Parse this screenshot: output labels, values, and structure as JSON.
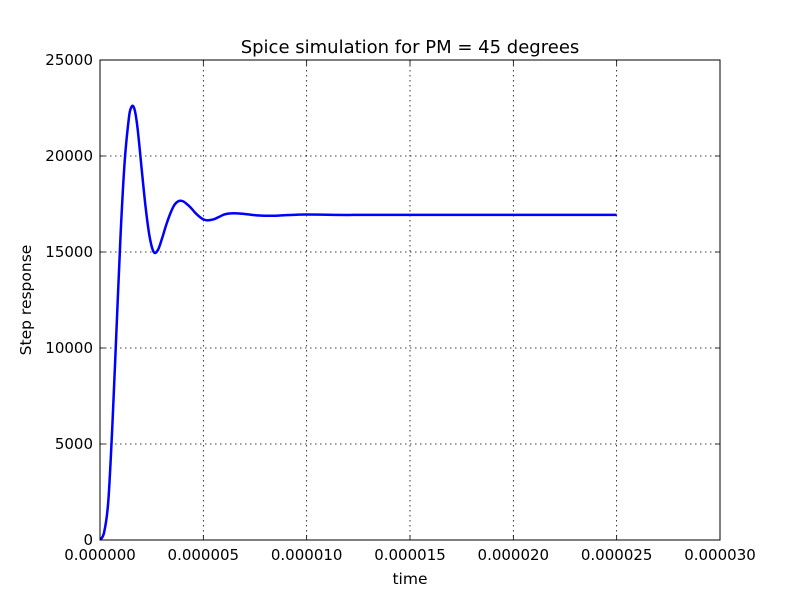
{
  "chart_data": {
    "type": "line",
    "title": "Spice simulation for PM = 45 degrees",
    "xlabel": "time",
    "ylabel": "Step response",
    "xlim": [
      0,
      3e-05
    ],
    "ylim": [
      0,
      25000
    ],
    "x_ticks": [
      0,
      5e-06,
      1e-05,
      1.5e-05,
      2e-05,
      2.5e-05,
      3e-05
    ],
    "x_tick_labels": [
      "0.000000",
      "0.000005",
      "0.000010",
      "0.000015",
      "0.000020",
      "0.000025",
      "0.000030"
    ],
    "y_ticks": [
      0,
      5000,
      10000,
      15000,
      20000,
      25000
    ],
    "y_tick_labels": [
      "0",
      "5000",
      "10000",
      "15000",
      "20000",
      "25000"
    ],
    "grid": true,
    "legend": "none",
    "series": [
      {
        "color": "#0000ff",
        "x": [
          0,
          2e-07,
          4e-07,
          6e-07,
          8e-07,
          1e-06,
          1.2e-06,
          1.4e-06,
          1.5e-06,
          1.6e-06,
          1.7e-06,
          1.8e-06,
          1.9e-06,
          2e-06,
          2.2e-06,
          2.4e-06,
          2.6e-06,
          2.8e-06,
          3e-06,
          3.2e-06,
          3.4e-06,
          3.6e-06,
          3.8e-06,
          4e-06,
          4.2e-06,
          4.4e-06,
          4.6e-06,
          4.8e-06,
          5e-06,
          5.2e-06,
          5.5e-06,
          5.8e-06,
          6e-06,
          6.2e-06,
          6.5e-06,
          6.8e-06,
          7e-06,
          7.3e-06,
          7.6e-06,
          8e-06,
          8.5e-06,
          9e-06,
          9.5e-06,
          1e-05,
          1.1e-05,
          1.2e-05,
          1.3e-05,
          1.5e-05,
          2e-05,
          2.5e-05
        ],
        "y": [
          0,
          400,
          2000,
          6000,
          11000,
          16000,
          19800,
          22000,
          22500,
          22600,
          22300,
          21600,
          20600,
          19500,
          17400,
          15800,
          15000,
          15100,
          15700,
          16400,
          17000,
          17450,
          17650,
          17650,
          17500,
          17300,
          17050,
          16850,
          16700,
          16650,
          16700,
          16850,
          16950,
          17000,
          17020,
          17000,
          16980,
          16940,
          16910,
          16890,
          16890,
          16920,
          16940,
          16950,
          16940,
          16930,
          16935,
          16935,
          16935,
          16935
        ]
      }
    ]
  }
}
